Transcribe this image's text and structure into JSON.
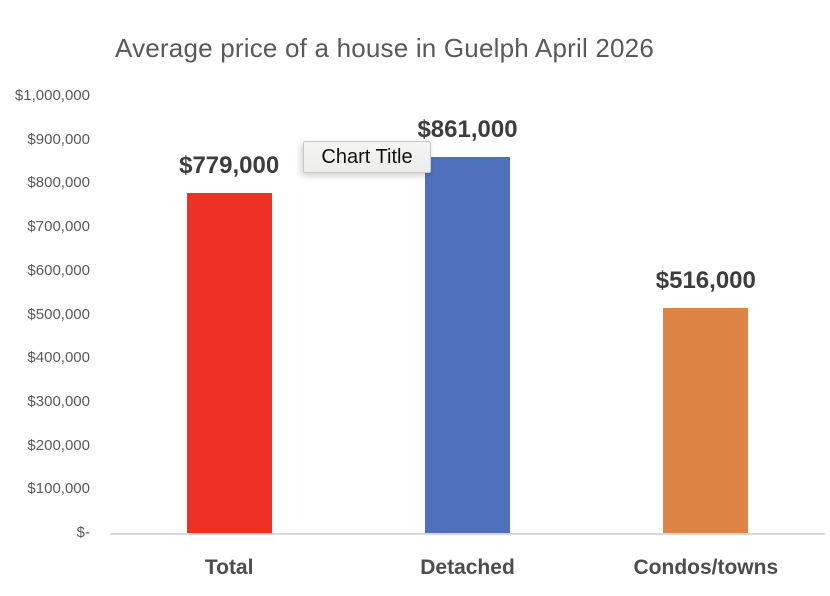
{
  "tooltip": {
    "label": "Chart Title"
  },
  "chart_data": {
    "type": "bar",
    "title": "Average price of a house in Guelph April 2026",
    "categories": [
      "Total",
      "Detached",
      "Condos/towns"
    ],
    "values": [
      779000,
      861000,
      516000
    ],
    "data_labels": [
      "$779,000",
      "$861,000",
      "$516,000"
    ],
    "bar_colors": [
      "#ee3124",
      "#4f70bd",
      "#dd8343"
    ],
    "xlabel": "",
    "ylabel": "",
    "ylim": [
      0,
      1000000
    ],
    "ytick_interval": 100000,
    "ytick_labels": [
      "$-",
      "$100,000",
      "$200,000",
      "$300,000",
      "$400,000",
      "$500,000",
      "$600,000",
      "$700,000",
      "$800,000",
      "$900,000",
      "$1,000,000"
    ],
    "grid": false,
    "legend": false
  },
  "colors": {
    "axis_line": "#d8d8d8",
    "tick_text": "#595959",
    "title_text": "#595959",
    "data_label_text": "#3d3d3d",
    "category_text": "#4d4d4d",
    "background": "#ffffff"
  }
}
